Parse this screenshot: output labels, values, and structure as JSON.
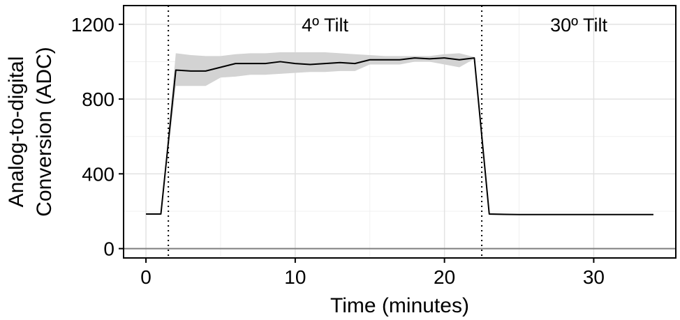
{
  "chart_data": {
    "type": "line",
    "title": "",
    "xlabel": "Time (minutes)",
    "ylabel": [
      "Analog-to-digital",
      "Conversion (ADC)"
    ],
    "xlim": [
      -1.5,
      35.5
    ],
    "ylim": [
      -50,
      1300
    ],
    "xticks": [
      0,
      10,
      20,
      30
    ],
    "yticks": [
      0,
      400,
      800,
      1200
    ],
    "grid": true,
    "hline_y": 0,
    "vlines": [
      1.5,
      22.5
    ],
    "annotations": [
      {
        "text": "4º Tilt",
        "x": 12,
        "y": 1200
      },
      {
        "text": "30º Tilt",
        "x": 29,
        "y": 1200
      }
    ],
    "series": [
      {
        "x": [
          0,
          1,
          2,
          3,
          4,
          5,
          6,
          7,
          8,
          9,
          10,
          11,
          12,
          13,
          14,
          15,
          16,
          17,
          18,
          19,
          20,
          21,
          22,
          23,
          24,
          25,
          26,
          27,
          28,
          29,
          30,
          31,
          32,
          33,
          34
        ],
        "values": [
          185,
          185,
          955,
          950,
          950,
          970,
          990,
          990,
          990,
          1000,
          990,
          985,
          990,
          995,
          990,
          1010,
          1010,
          1010,
          1020,
          1015,
          1020,
          1010,
          1020,
          185,
          183,
          182,
          182,
          182,
          182,
          182,
          182,
          182,
          182,
          182,
          182
        ],
        "band_lower": [
          185,
          185,
          870,
          870,
          870,
          915,
          920,
          930,
          930,
          935,
          940,
          945,
          945,
          950,
          950,
          985,
          985,
          985,
          1000,
          1000,
          985,
          970,
          1015,
          180,
          180,
          180,
          180,
          180,
          180,
          180,
          180,
          180,
          180,
          180,
          180
        ],
        "band_upper": [
          185,
          185,
          1045,
          1035,
          1030,
          1030,
          1040,
          1045,
          1045,
          1050,
          1050,
          1050,
          1050,
          1045,
          1040,
          1035,
          1030,
          1030,
          1030,
          1030,
          1040,
          1045,
          1025,
          190,
          188,
          185,
          185,
          185,
          185,
          185,
          185,
          185,
          185,
          185,
          185
        ],
        "color": "#000000",
        "band_color": "#d3d3d3"
      }
    ]
  }
}
